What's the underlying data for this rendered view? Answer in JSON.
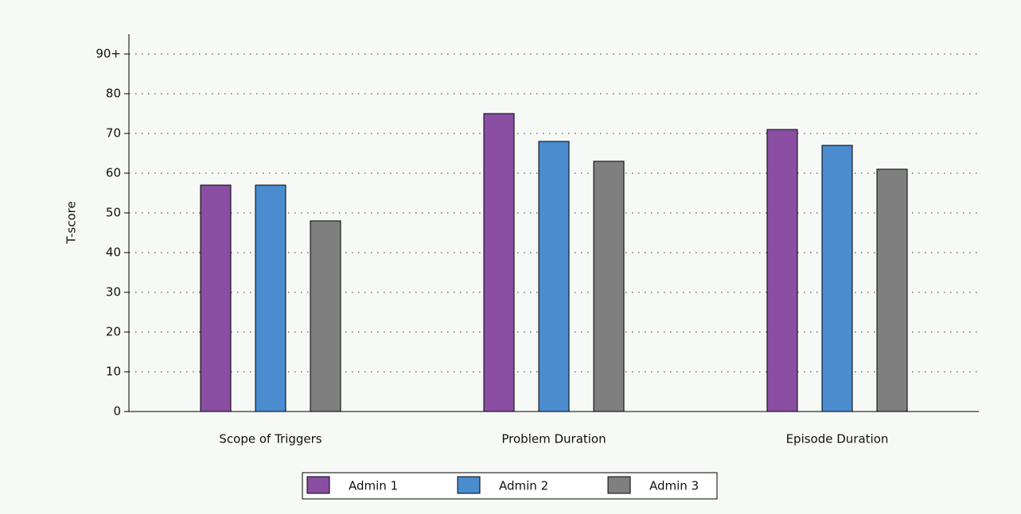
{
  "chart_data": {
    "type": "bar",
    "ylabel": "T-score",
    "categories": [
      "Scope of Triggers",
      "Problem Duration",
      "Episode Duration"
    ],
    "series": [
      {
        "name": "Admin 1",
        "color": "#8a4ea3",
        "values": [
          57,
          75,
          71
        ]
      },
      {
        "name": "Admin 2",
        "color": "#4a8ccd",
        "values": [
          57,
          68,
          67
        ]
      },
      {
        "name": "Admin 3",
        "color": "#7f7f7f",
        "values": [
          48,
          63,
          61
        ]
      }
    ],
    "ylim": [
      0,
      95
    ],
    "yticks": [
      0,
      10,
      20,
      30,
      40,
      50,
      60,
      70,
      80,
      {
        "value": 90,
        "label": "90+"
      }
    ],
    "grid": true,
    "legend": "bottom"
  }
}
